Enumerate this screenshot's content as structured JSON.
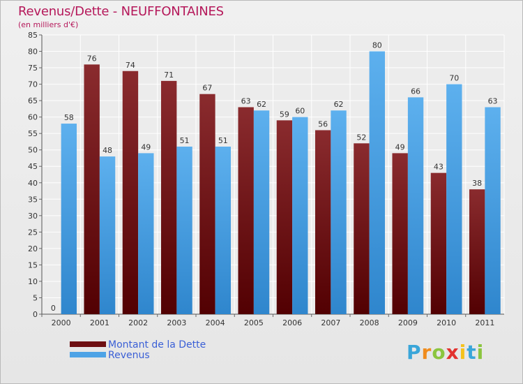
{
  "header": {
    "title": "Revenus/Dette - NEUFFONTAINES",
    "subtitle": "(en milliers d'€)"
  },
  "legend": [
    {
      "label": "Montant de la Dette",
      "color": "#6e0f12"
    },
    {
      "label": "Revenus",
      "color": "#4ea3e6"
    }
  ],
  "logo": {
    "letters": [
      "P",
      "r",
      "o",
      "x",
      "i",
      "t",
      "i"
    ],
    "colors": [
      "#3aa6d9",
      "#f08c1e",
      "#8bc53f",
      "#e2322f",
      "#f5c21b",
      "#3aa6d9",
      "#8bc53f"
    ]
  },
  "chart_data": {
    "type": "bar",
    "categories": [
      "2000",
      "2001",
      "2002",
      "2003",
      "2004",
      "2005",
      "2006",
      "2007",
      "2008",
      "2009",
      "2010",
      "2011"
    ],
    "series": [
      {
        "name": "Montant de la Dette",
        "values": [
          0,
          76,
          74,
          71,
          67,
          63,
          59,
          56,
          52,
          49,
          43,
          38
        ]
      },
      {
        "name": "Revenus",
        "values": [
          58,
          48,
          49,
          51,
          51,
          62,
          60,
          62,
          80,
          66,
          70,
          63
        ]
      }
    ],
    "ylim": [
      0,
      85
    ],
    "yticks": [
      0,
      5,
      10,
      15,
      20,
      25,
      30,
      35,
      40,
      45,
      50,
      55,
      60,
      65,
      70,
      75,
      80,
      85
    ],
    "grid": true,
    "legend_position": "bottom-left"
  }
}
